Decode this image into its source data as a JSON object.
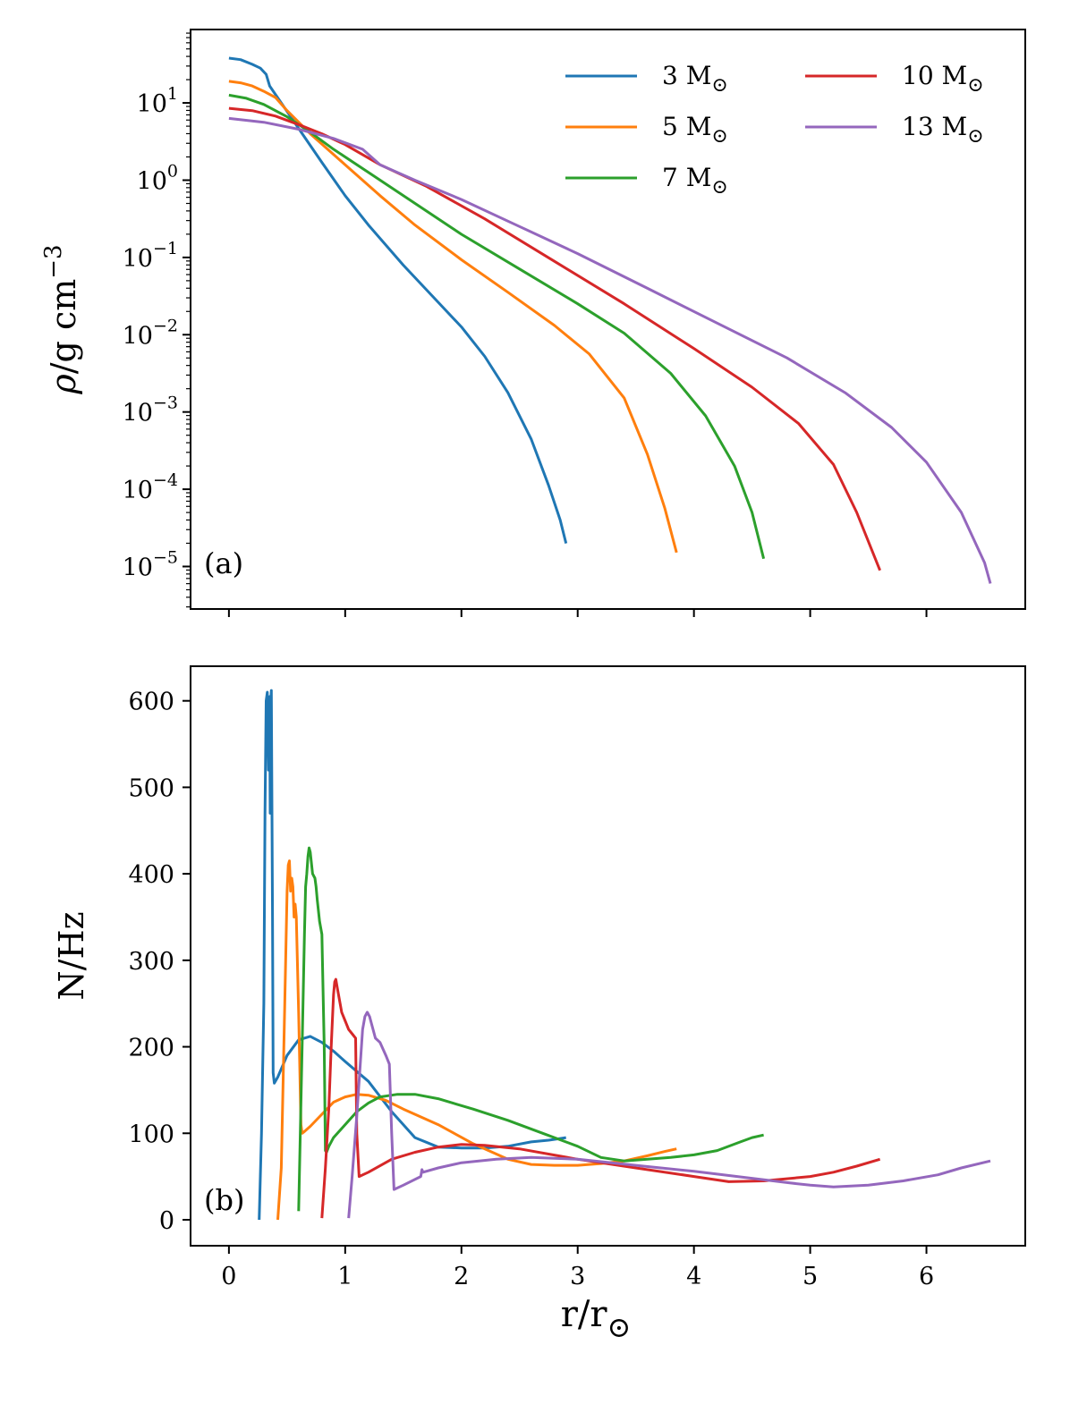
{
  "colors": {
    "3": "#1f77b4",
    "5": "#ff7f0e",
    "7": "#2ca02c",
    "10": "#d62728",
    "13": "#9467bd"
  },
  "chart_data": [
    {
      "type": "line",
      "panel": "(a)",
      "yscale": "log",
      "ylabel": "ρ/g cm⁻³",
      "xlabel": "",
      "xlim": [
        -0.33,
        6.85
      ],
      "ylim_log10": [
        -5.55,
        1.95
      ],
      "xticks": [
        0,
        1,
        2,
        3,
        4,
        5,
        6
      ],
      "xtick_labels_visible": false,
      "yticks_log10": [
        -5,
        -4,
        -3,
        -2,
        -1,
        0,
        1
      ],
      "ytick_labels": [
        "10",
        "10",
        "10",
        "10",
        "10",
        "10",
        "10"
      ],
      "ytick_exponents": [
        "−5",
        "−4",
        "−3",
        "−2",
        "−1",
        "0",
        "1"
      ],
      "legend": {
        "position": "top-right",
        "entries": [
          {
            "key": "3",
            "mass": "3",
            "unit": " M",
            "sun": "⊙"
          },
          {
            "key": "5",
            "mass": "5",
            "unit": " M",
            "sun": "⊙"
          },
          {
            "key": "7",
            "mass": "7",
            "unit": " M",
            "sun": "⊙"
          },
          {
            "key": "10",
            "mass": "10",
            "unit": " M",
            "sun": "⊙"
          },
          {
            "key": "13",
            "mass": "13",
            "unit": " M",
            "sun": "⊙"
          }
        ]
      },
      "series": [
        {
          "name": "3 M⊙",
          "key": "3",
          "x": [
            0.0,
            0.1,
            0.2,
            0.27,
            0.32,
            0.35,
            0.45,
            0.6,
            0.8,
            1.0,
            1.2,
            1.5,
            1.8,
            2.0,
            2.2,
            2.4,
            2.6,
            2.75,
            2.85,
            2.9
          ],
          "log_y": [
            1.58,
            1.56,
            1.5,
            1.45,
            1.37,
            1.22,
            1.0,
            0.67,
            0.23,
            -0.2,
            -0.58,
            -1.1,
            -1.58,
            -1.9,
            -2.28,
            -2.75,
            -3.35,
            -3.95,
            -4.4,
            -4.7
          ]
        },
        {
          "name": "5 M⊙",
          "key": "5",
          "x": [
            0.0,
            0.1,
            0.2,
            0.3,
            0.4,
            0.5,
            0.7,
            1.0,
            1.3,
            1.6,
            2.0,
            2.4,
            2.8,
            3.1,
            3.4,
            3.6,
            3.75,
            3.85
          ],
          "log_y": [
            1.28,
            1.26,
            1.22,
            1.15,
            1.07,
            0.9,
            0.6,
            0.2,
            -0.2,
            -0.58,
            -1.03,
            -1.45,
            -1.88,
            -2.25,
            -2.82,
            -3.55,
            -4.25,
            -4.82
          ]
        },
        {
          "name": "7 M⊙",
          "key": "7",
          "x": [
            0.0,
            0.15,
            0.3,
            0.5,
            0.7,
            0.9,
            1.2,
            1.6,
            2.0,
            2.5,
            3.0,
            3.4,
            3.8,
            4.1,
            4.35,
            4.5,
            4.6
          ],
          "log_y": [
            1.1,
            1.06,
            0.98,
            0.82,
            0.62,
            0.4,
            0.1,
            -0.3,
            -0.7,
            -1.15,
            -1.6,
            -1.98,
            -2.5,
            -3.05,
            -3.7,
            -4.3,
            -4.9
          ]
        },
        {
          "name": "10 M⊙",
          "key": "10",
          "x": [
            0.0,
            0.2,
            0.4,
            0.6,
            0.8,
            1.0,
            1.3,
            1.7,
            2.2,
            2.8,
            3.4,
            4.0,
            4.5,
            4.9,
            5.2,
            5.4,
            5.6
          ],
          "log_y": [
            0.93,
            0.9,
            0.83,
            0.72,
            0.6,
            0.46,
            0.2,
            -0.08,
            -0.5,
            -1.05,
            -1.6,
            -2.18,
            -2.68,
            -3.15,
            -3.68,
            -4.3,
            -5.05
          ]
        },
        {
          "name": "13 M⊙",
          "key": "13",
          "x": [
            0.0,
            0.3,
            0.6,
            0.9,
            1.15,
            1.3,
            1.6,
            2.0,
            2.5,
            3.0,
            3.6,
            4.2,
            4.8,
            5.3,
            5.7,
            6.0,
            6.3,
            6.5,
            6.55
          ],
          "log_y": [
            0.8,
            0.75,
            0.66,
            0.54,
            0.4,
            0.2,
            0.0,
            -0.25,
            -0.6,
            -0.95,
            -1.4,
            -1.85,
            -2.3,
            -2.75,
            -3.2,
            -3.65,
            -4.3,
            -4.95,
            -5.22
          ]
        }
      ]
    },
    {
      "type": "line",
      "panel": "(b)",
      "yscale": "linear",
      "ylabel": "N/Hz",
      "xlabel": "r/r",
      "xlabel_sub": "⊙",
      "xlim": [
        -0.33,
        6.85
      ],
      "ylim": [
        -30,
        640
      ],
      "xticks": [
        0,
        1,
        2,
        3,
        4,
        5,
        6
      ],
      "xtick_labels": [
        "0",
        "1",
        "2",
        "3",
        "4",
        "5",
        "6"
      ],
      "yticks": [
        0,
        100,
        200,
        300,
        400,
        500,
        600
      ],
      "ytick_labels": [
        "0",
        "100",
        "200",
        "300",
        "400",
        "500",
        "600"
      ],
      "series": [
        {
          "name": "3 M⊙",
          "key": "3",
          "x": [
            0.26,
            0.28,
            0.3,
            0.31,
            0.32,
            0.33,
            0.34,
            0.345,
            0.35,
            0.355,
            0.36,
            0.365,
            0.37,
            0.375,
            0.38,
            0.39,
            0.42,
            0.5,
            0.6,
            0.7,
            0.8,
            0.9,
            1.0,
            1.2,
            1.4,
            1.6,
            1.8,
            2.0,
            2.2,
            2.4,
            2.6,
            2.75,
            2.85,
            2.9
          ],
          "y": [
            0,
            100,
            250,
            470,
            600,
            610,
            520,
            600,
            605,
            470,
            600,
            612,
            470,
            350,
            170,
            158,
            165,
            190,
            208,
            212,
            205,
            195,
            183,
            160,
            125,
            95,
            84,
            83,
            83,
            85,
            90,
            92,
            94,
            95
          ]
        },
        {
          "name": "5 M⊙",
          "key": "5",
          "x": [
            0.42,
            0.45,
            0.48,
            0.5,
            0.51,
            0.52,
            0.53,
            0.54,
            0.55,
            0.56,
            0.57,
            0.58,
            0.6,
            0.62,
            0.63,
            0.65,
            0.7,
            0.8,
            0.9,
            1.0,
            1.1,
            1.2,
            1.35,
            1.5,
            1.8,
            2.1,
            2.4,
            2.6,
            2.8,
            3.0,
            3.2,
            3.4,
            3.6,
            3.75,
            3.85
          ],
          "y": [
            0,
            60,
            250,
            380,
            410,
            415,
            380,
            395,
            385,
            350,
            365,
            350,
            240,
            110,
            100,
            102,
            108,
            122,
            136,
            142,
            145,
            144,
            138,
            128,
            110,
            88,
            70,
            64,
            63,
            63,
            65,
            68,
            74,
            79,
            82
          ]
        },
        {
          "name": "7 M⊙",
          "key": "7",
          "x": [
            0.6,
            0.63,
            0.65,
            0.66,
            0.67,
            0.68,
            0.69,
            0.7,
            0.72,
            0.74,
            0.75,
            0.76,
            0.78,
            0.8,
            0.82,
            0.83,
            0.84,
            0.86,
            0.9,
            1.0,
            1.1,
            1.2,
            1.3,
            1.45,
            1.6,
            1.8,
            2.1,
            2.4,
            2.7,
            3.0,
            3.2,
            3.4,
            3.6,
            3.8,
            4.0,
            4.2,
            4.4,
            4.5,
            4.6
          ],
          "y": [
            10,
            200,
            330,
            385,
            400,
            420,
            430,
            425,
            400,
            395,
            385,
            370,
            345,
            330,
            200,
            80,
            78,
            85,
            95,
            110,
            125,
            135,
            142,
            145,
            145,
            140,
            128,
            115,
            100,
            85,
            72,
            68,
            70,
            72,
            75,
            80,
            90,
            95,
            98
          ]
        },
        {
          "name": "10 M⊙",
          "key": "10",
          "x": [
            0.8,
            0.83,
            0.86,
            0.88,
            0.9,
            0.91,
            0.92,
            0.93,
            0.95,
            0.97,
            1.0,
            1.03,
            1.06,
            1.09,
            1.1,
            1.12,
            1.2,
            1.4,
            1.6,
            1.8,
            2.0,
            2.2,
            2.5,
            3.0,
            3.5,
            4.0,
            4.3,
            4.6,
            5.0,
            5.2,
            5.4,
            5.6
          ],
          "y": [
            2,
            60,
            130,
            200,
            260,
            275,
            278,
            270,
            255,
            240,
            230,
            220,
            215,
            210,
            100,
            50,
            55,
            70,
            78,
            84,
            87,
            86,
            82,
            70,
            60,
            50,
            44,
            45,
            50,
            55,
            62,
            70
          ]
        },
        {
          "name": "13 M⊙",
          "key": "13",
          "x": [
            1.03,
            1.06,
            1.1,
            1.13,
            1.15,
            1.17,
            1.19,
            1.21,
            1.23,
            1.26,
            1.3,
            1.35,
            1.38,
            1.4,
            1.42,
            1.5,
            1.65,
            1.66,
            1.67,
            1.8,
            2.0,
            2.3,
            2.6,
            3.0,
            3.5,
            4.0,
            4.5,
            4.8,
            5.0,
            5.2,
            5.5,
            5.8,
            6.1,
            6.3,
            6.55
          ],
          "y": [
            2,
            50,
            120,
            180,
            220,
            235,
            240,
            235,
            225,
            210,
            205,
            190,
            180,
            100,
            35,
            40,
            50,
            58,
            55,
            60,
            66,
            70,
            72,
            70,
            63,
            56,
            48,
            43,
            40,
            38,
            40,
            45,
            52,
            60,
            68
          ]
        }
      ]
    }
  ]
}
